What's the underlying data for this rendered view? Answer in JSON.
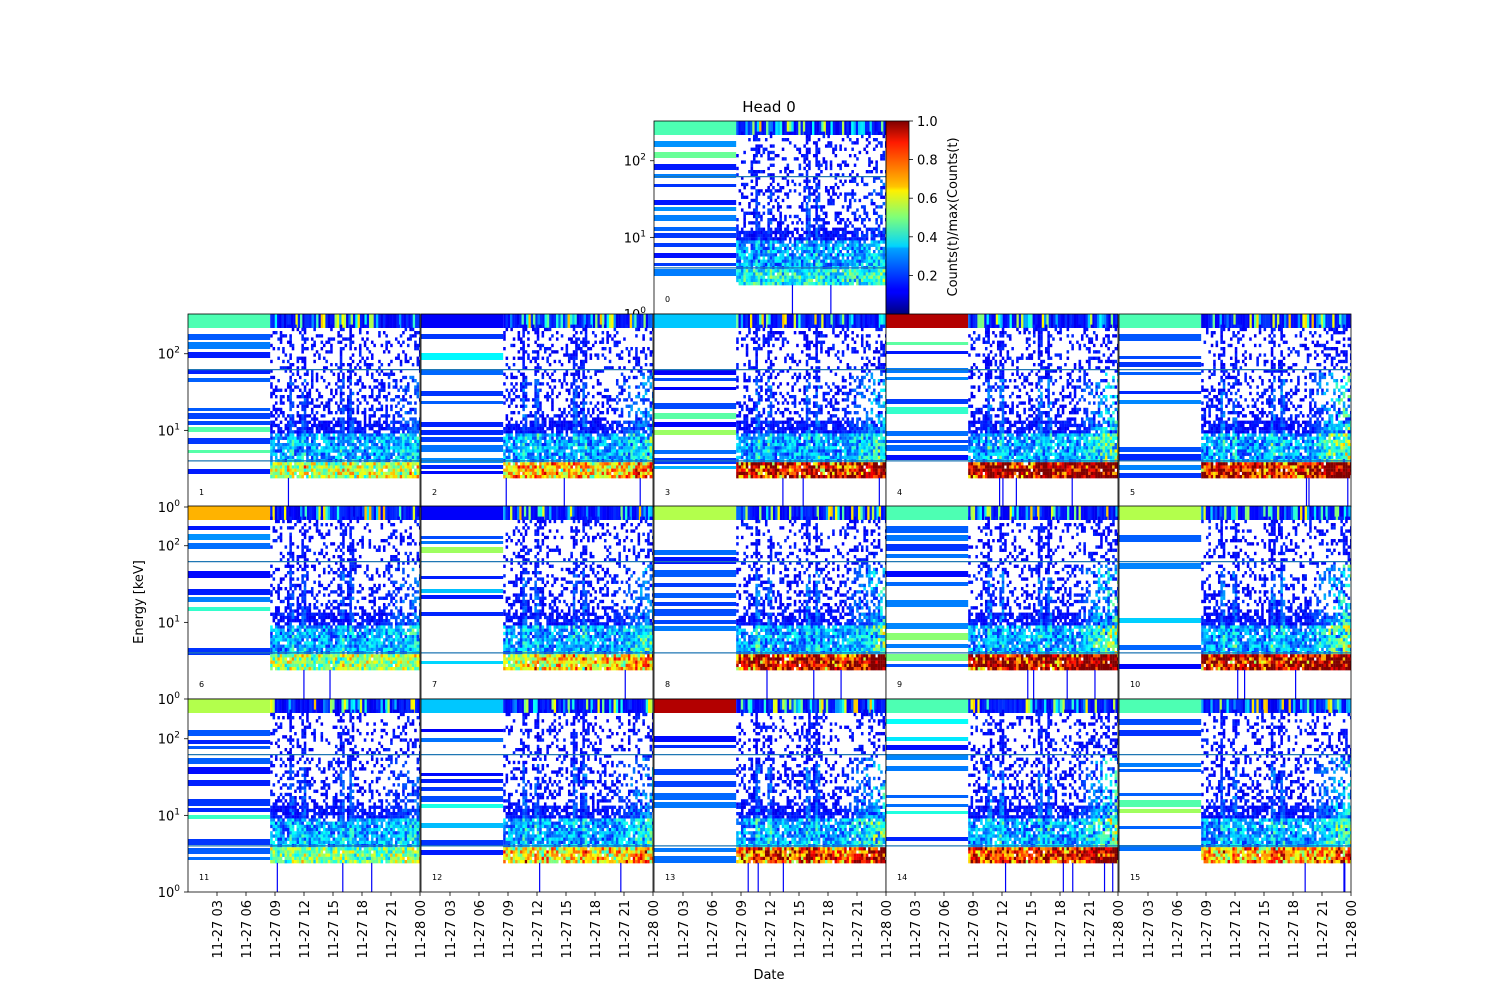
{
  "chart_data": {
    "type": "heatmap",
    "title": "Head 0",
    "xlabel": "Date",
    "ylabel": "Energy [keV]",
    "x_ticks": [
      "11-27 03",
      "11-27 06",
      "11-27 09",
      "11-27 12",
      "11-27 15",
      "11-27 18",
      "11-27 21",
      "11-28 00"
    ],
    "x_range_hours": [
      0,
      24
    ],
    "y_scale": "log",
    "y_ticks": [
      "10^0",
      "10^1",
      "10^2"
    ],
    "y_tick_values": [
      1,
      10,
      100
    ],
    "ylim": [
      1,
      330
    ],
    "colorbar": {
      "label": "Counts(t)/max(Counts(t)",
      "ticks": [
        "0.2",
        "0.4",
        "0.6",
        "0.8",
        "1.0"
      ],
      "tick_values": [
        0.2,
        0.4,
        0.6,
        0.8,
        1.0
      ],
      "range": [
        0,
        1.0
      ],
      "colormap": "jet"
    },
    "guide_lines_keV": [
      4,
      62
    ],
    "data_start_hour": 8.5,
    "panels": [
      {
        "label": "0",
        "top_band": 0.45,
        "high_level": 0.2,
        "low_level": 0.15,
        "burst": 0.15
      },
      {
        "label": "1",
        "top_band": 0.45,
        "high_level": 0.25,
        "low_level": 0.4,
        "burst": 0.2
      },
      {
        "label": "2",
        "top_band": 0.12,
        "high_level": 0.3,
        "low_level": 0.55,
        "burst": 0.35
      },
      {
        "label": "3",
        "top_band": 0.32,
        "high_level": 0.3,
        "low_level": 0.85,
        "burst": 0.45
      },
      {
        "label": "4",
        "top_band": 0.95,
        "high_level": 0.35,
        "low_level": 0.95,
        "burst": 0.6
      },
      {
        "label": "5",
        "top_band": 0.45,
        "high_level": 0.35,
        "low_level": 0.9,
        "burst": 0.7
      },
      {
        "label": "6",
        "top_band": 0.7,
        "high_level": 0.25,
        "low_level": 0.35,
        "burst": 0.25
      },
      {
        "label": "7",
        "top_band": 0.12,
        "high_level": 0.3,
        "low_level": 0.5,
        "burst": 0.35
      },
      {
        "label": "8",
        "top_band": 0.55,
        "high_level": 0.35,
        "low_level": 0.9,
        "burst": 0.5
      },
      {
        "label": "9",
        "top_band": 0.45,
        "high_level": 0.35,
        "low_level": 0.95,
        "burst": 0.6
      },
      {
        "label": "10",
        "top_band": 0.55,
        "high_level": 0.35,
        "low_level": 0.9,
        "burst": 0.65
      },
      {
        "label": "11",
        "top_band": 0.55,
        "high_level": 0.25,
        "low_level": 0.3,
        "burst": 0.2
      },
      {
        "label": "12",
        "top_band": 0.32,
        "high_level": 0.3,
        "low_level": 0.5,
        "burst": 0.35
      },
      {
        "label": "13",
        "top_band": 0.95,
        "high_level": 0.35,
        "low_level": 0.75,
        "burst": 0.5
      },
      {
        "label": "14",
        "top_band": 0.45,
        "high_level": 0.35,
        "low_level": 0.8,
        "burst": 0.6
      },
      {
        "label": "15",
        "top_band": 0.45,
        "high_level": 0.3,
        "low_level": 0.6,
        "burst": 0.5
      }
    ]
  }
}
